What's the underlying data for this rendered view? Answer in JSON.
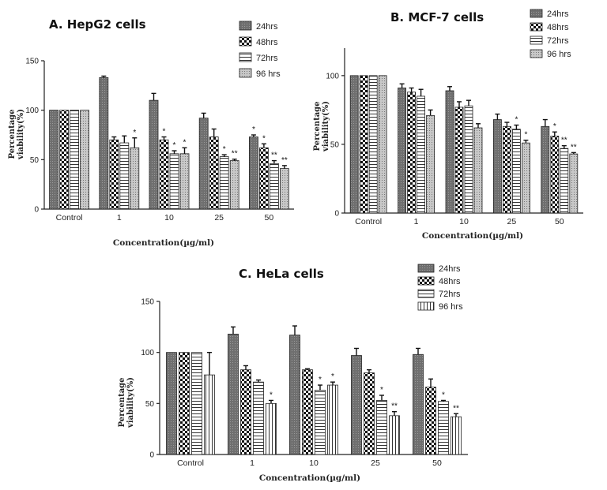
{
  "chart_data": [
    {
      "type": "bar",
      "title": "A. HepG2 cells",
      "xlabel": "Concentration(µg/ml)",
      "ylabel": "Percentage viability(%)",
      "categories": [
        "Control",
        "1",
        "10",
        "25",
        "50"
      ],
      "ylim": [
        0,
        150
      ],
      "yticks": [
        0,
        50,
        100,
        150
      ],
      "legend_position": "top-right",
      "series": [
        {
          "name": "24hrs",
          "values": [
            100,
            133,
            110,
            92,
            73
          ],
          "errors": [
            0,
            1.5,
            7,
            5,
            2
          ],
          "sig": [
            "",
            "",
            "",
            "",
            "*"
          ]
        },
        {
          "name": "48hrs",
          "values": [
            100,
            70,
            70,
            73,
            62
          ],
          "errors": [
            0,
            3,
            3,
            8,
            4
          ],
          "sig": [
            "",
            "",
            "*",
            "",
            "*"
          ]
        },
        {
          "name": "72hrs",
          "values": [
            100,
            67,
            56,
            53,
            46
          ],
          "errors": [
            0,
            7,
            3,
            2,
            3
          ],
          "sig": [
            "",
            "",
            "*",
            "*",
            "**"
          ]
        },
        {
          "name": "96 hrs",
          "values": [
            100,
            62,
            56,
            49,
            41
          ],
          "errors": [
            0,
            10,
            6,
            1.5,
            3
          ],
          "sig": [
            "",
            "*",
            "*",
            "**",
            "**"
          ]
        }
      ]
    },
    {
      "type": "bar",
      "title": "B. MCF-7 cells",
      "xlabel": "Concentration(µg/ml)",
      "ylabel": "Percentage viability(%)",
      "categories": [
        "Control",
        "1",
        "10",
        "25",
        "50"
      ],
      "ylim": [
        0,
        120
      ],
      "yticks": [
        0,
        50,
        100
      ],
      "legend_position": "top-right",
      "series": [
        {
          "name": "24hrs",
          "values": [
            100,
            91,
            89,
            68,
            63
          ],
          "errors": [
            0,
            3,
            3,
            4,
            5
          ],
          "sig": [
            "",
            "",
            "",
            "",
            ""
          ]
        },
        {
          "name": "48hrs",
          "values": [
            100,
            88,
            77,
            63,
            56
          ],
          "errors": [
            0,
            3,
            4,
            3,
            3
          ],
          "sig": [
            "",
            "",
            "",
            "",
            "*"
          ]
        },
        {
          "name": "72hrs",
          "values": [
            100,
            85,
            78,
            61,
            47
          ],
          "errors": [
            0,
            5,
            4,
            3,
            2
          ],
          "sig": [
            "",
            "",
            "",
            "*",
            "**"
          ]
        },
        {
          "name": "96 hrs",
          "values": [
            100,
            71,
            62,
            51,
            43
          ],
          "errors": [
            0,
            4,
            3,
            2,
            1
          ],
          "sig": [
            "",
            "",
            "",
            "*",
            "**"
          ]
        }
      ]
    },
    {
      "type": "bar",
      "title": "C.  HeLa cells",
      "xlabel": "Concentration(µg/ml)",
      "ylabel": "Percentage viability(%)",
      "categories": [
        "Control",
        "1",
        "10",
        "25",
        "50"
      ],
      "ylim": [
        0,
        150
      ],
      "yticks": [
        0,
        50,
        100,
        150
      ],
      "legend_position": "top-right",
      "series": [
        {
          "name": "24hrs",
          "values": [
            100,
            118,
            117,
            97,
            98
          ],
          "errors": [
            0,
            7,
            9,
            7,
            6
          ],
          "sig": [
            "",
            "",
            "",
            "",
            ""
          ]
        },
        {
          "name": "48hrs",
          "values": [
            100,
            83,
            83,
            80,
            66
          ],
          "errors": [
            0,
            4,
            1,
            3,
            8
          ],
          "sig": [
            "",
            "",
            "",
            "",
            ""
          ]
        },
        {
          "name": "72hrs",
          "values": [
            100,
            71,
            63,
            53,
            52
          ],
          "errors": [
            0,
            2,
            5,
            5,
            1
          ],
          "sig": [
            "",
            "",
            "*",
            "*",
            "*"
          ]
        },
        {
          "name": "96 hrs",
          "values": [
            78,
            50,
            68,
            38,
            37
          ],
          "errors": [
            22,
            3,
            3,
            4,
            3
          ],
          "sig": [
            "",
            "*",
            "*",
            "**",
            "**"
          ]
        }
      ]
    }
  ]
}
